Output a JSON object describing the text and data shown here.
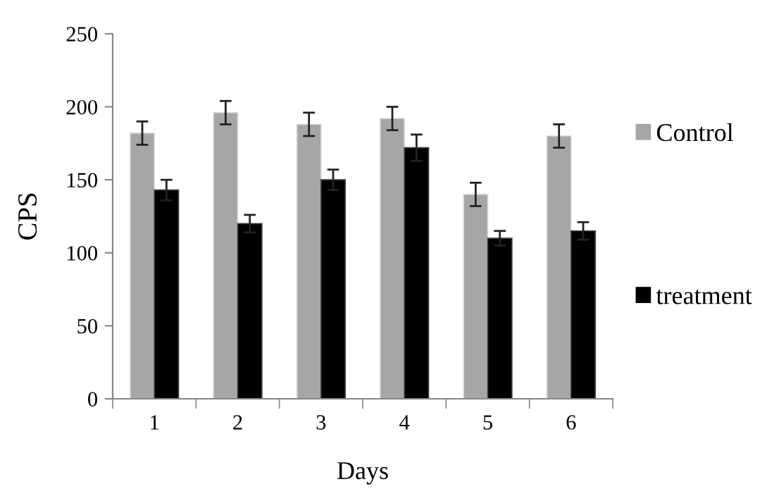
{
  "chart_data": {
    "type": "bar",
    "xlabel": "Days",
    "ylabel": "CPS",
    "categories": [
      "1",
      "2",
      "3",
      "4",
      "5",
      "6"
    ],
    "series": [
      {
        "name": "Control",
        "color": "#a6a6a6",
        "values": [
          182,
          196,
          188,
          192,
          140,
          180
        ],
        "errors": [
          8,
          8,
          8,
          8,
          8,
          8
        ]
      },
      {
        "name": "treatment",
        "color": "#000000",
        "values": [
          143,
          120,
          150,
          172,
          110,
          115
        ],
        "errors": [
          7,
          6,
          7,
          9,
          5,
          6
        ]
      }
    ],
    "ylim": [
      0,
      250
    ],
    "yticks": [
      0,
      50,
      100,
      150,
      200,
      250
    ],
    "grid": false,
    "legend": "right"
  }
}
